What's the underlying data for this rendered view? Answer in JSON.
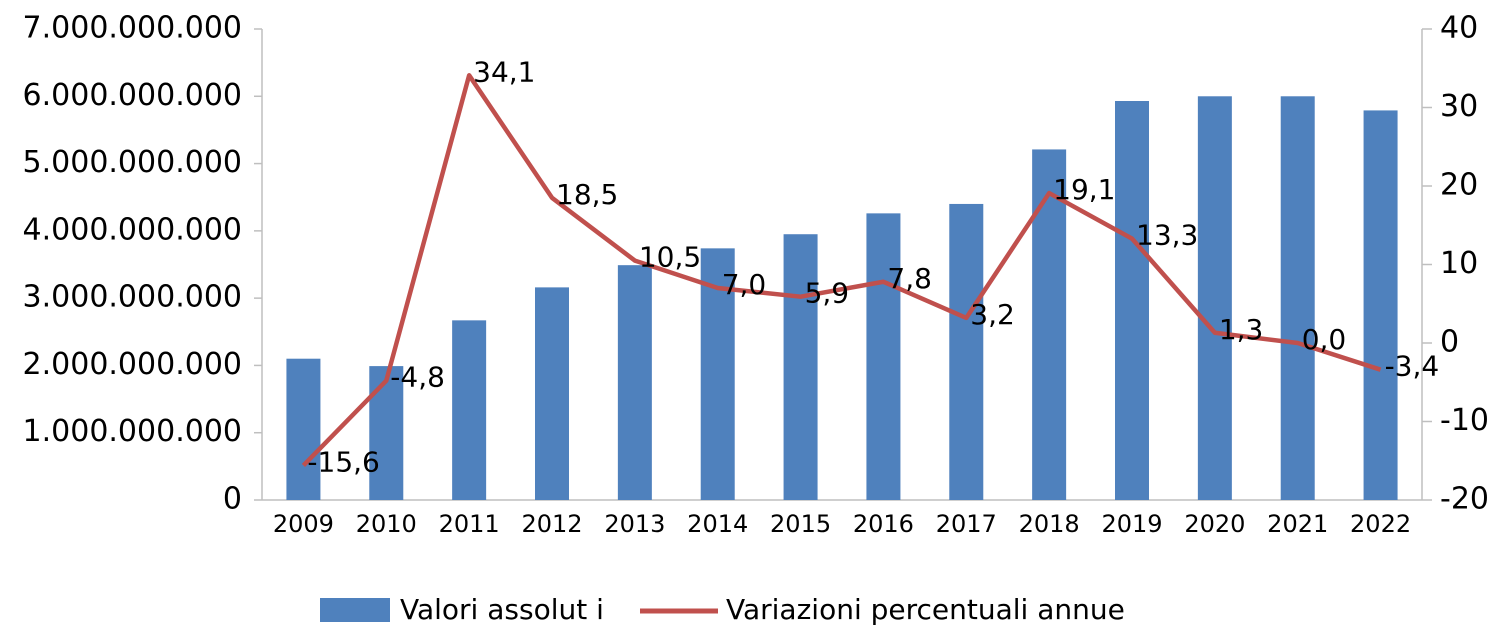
{
  "chart_data": {
    "type": "bar_line",
    "categories": [
      "2009",
      "2010",
      "2011",
      "2012",
      "2013",
      "2014",
      "2015",
      "2016",
      "2017",
      "2018",
      "2019",
      "2020",
      "2021",
      "2022"
    ],
    "series": [
      {
        "name": "Valori assolut i",
        "type": "bar",
        "color": "#4f81bd",
        "values": [
          2100000000,
          1990000000,
          2670000000,
          3160000000,
          3490000000,
          3740000000,
          3950000000,
          4260000000,
          4400000000,
          5210000000,
          5930000000,
          6000000000,
          6000000000,
          5790000000
        ]
      },
      {
        "name": "Variazioni percentuali annue",
        "type": "line",
        "axis": "y2",
        "color": "#c0504d",
        "values": [
          -15.6,
          -4.8,
          34.1,
          18.5,
          10.5,
          7.0,
          5.9,
          7.8,
          3.2,
          19.1,
          13.3,
          1.3,
          0.0,
          -3.4
        ],
        "value_labels": [
          "-15,6",
          "-4,8",
          "34,1",
          "18,5",
          "10,5",
          "7,0",
          "5,9",
          "7,8",
          "3,2",
          "19,1",
          "13,3",
          "1,3",
          "0,0",
          "-3,4"
        ]
      }
    ],
    "ylim": [
      0,
      7000000000
    ],
    "yticks": [
      {
        "value": 0,
        "label": "0"
      },
      {
        "value": 1000000000,
        "label": "1.000.000.000"
      },
      {
        "value": 2000000000,
        "label": "2.000.000.000"
      },
      {
        "value": 3000000000,
        "label": "3.000.000.000"
      },
      {
        "value": 4000000000,
        "label": "4.000.000.000"
      },
      {
        "value": 5000000000,
        "label": "5.000.000.000"
      },
      {
        "value": 6000000000,
        "label": "6.000.000.000"
      },
      {
        "value": 7000000000,
        "label": "7.000.000.000"
      }
    ],
    "y2lim": [
      -20,
      40
    ],
    "y2ticks": [
      -20,
      -10,
      0,
      10,
      20,
      30,
      40
    ],
    "grid": false,
    "legend": "bottom"
  }
}
